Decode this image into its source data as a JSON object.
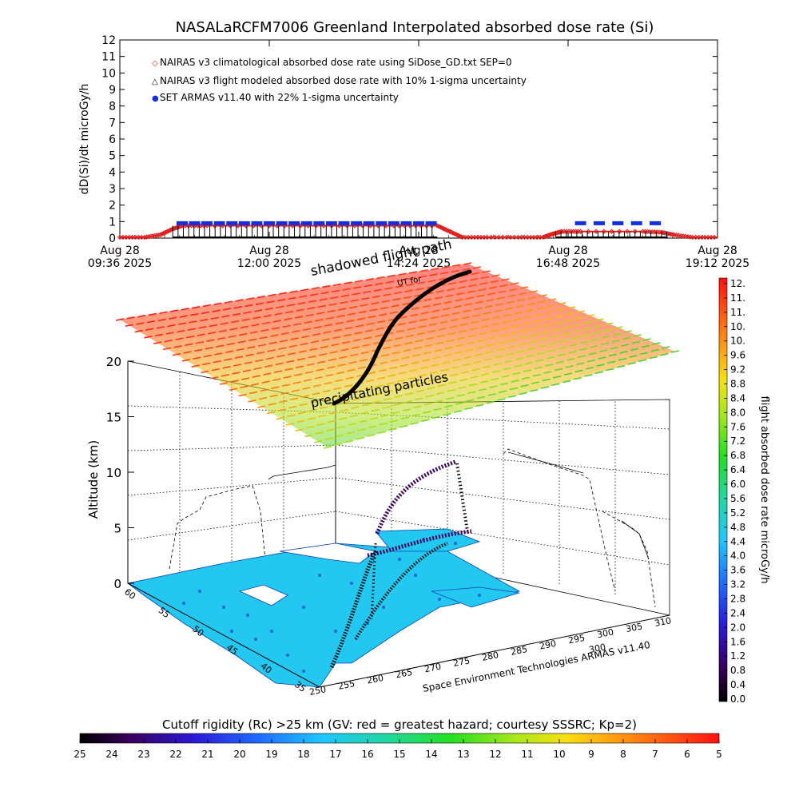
{
  "title": "NASALaRCFM7006  Greenland Interpolated absorbed dose rate (Si)",
  "chart_data": [
    {
      "type": "line",
      "title": "NASALaRCFM7006  Greenland Interpolated absorbed dose rate (Si)",
      "ylabel": "dD(Si)/dt microGy/h",
      "ylim": [
        0,
        12
      ],
      "y_ticks": [
        0,
        1,
        2,
        3,
        4,
        5,
        6,
        7,
        8,
        9,
        10,
        11,
        12
      ],
      "x_ticks": [
        {
          "date": "Aug 28",
          "time": "09:36 2025"
        },
        {
          "date": "Aug 28",
          "time": "12:00 2025"
        },
        {
          "date": "Aug 28",
          "time": "14:24 2025"
        },
        {
          "date": "Aug 28",
          "time": "16:48 2025"
        },
        {
          "date": "Aug 28",
          "time": "19:12 2025"
        }
      ],
      "xlim_hours": [
        9.6,
        19.2
      ],
      "legend": [
        {
          "marker": "◇",
          "color": "#e02020",
          "label": "NAIRAS v3 climatological absorbed dose rate using SiDose_GD.txt SEP=0"
        },
        {
          "marker": "△",
          "color": "#000000",
          "label": "NAIRAS v3 flight modeled absorbed dose rate with 10% 1-sigma uncertainty"
        },
        {
          "marker": "●",
          "color": "#1030e0",
          "label": "SET ARMAS v11.40 with 22% 1-sigma uncertainty"
        }
      ],
      "legend_position": "top-left",
      "series": [
        {
          "name": "NAIRAS v3 climatological absorbed dose rate using SiDose_GD.txt SEP=0",
          "color": "#e02020",
          "x": [
            9.6,
            10.0,
            10.25,
            10.45,
            10.6,
            11.0,
            12.0,
            13.0,
            14.0,
            14.7,
            14.9,
            15.1,
            15.5,
            16.0,
            16.4,
            16.55,
            16.7,
            17.0,
            18.0,
            18.3,
            18.5,
            18.8,
            19.2
          ],
          "y": [
            0.05,
            0.05,
            0.2,
            0.55,
            0.75,
            0.75,
            0.75,
            0.75,
            0.75,
            0.75,
            0.4,
            0.05,
            0.05,
            0.05,
            0.05,
            0.25,
            0.4,
            0.4,
            0.4,
            0.35,
            0.2,
            0.05,
            0.05
          ]
        },
        {
          "name": "NAIRAS v3 flight modeled absorbed dose rate with 10% 1-sigma uncertainty",
          "color": "#000000",
          "x": [
            10.45,
            10.8,
            11.2,
            11.6,
            12.0,
            12.4,
            12.8,
            13.2,
            13.6,
            14.0,
            14.4,
            14.7,
            16.6,
            16.9,
            17.2,
            17.5,
            17.8,
            18.1,
            18.4
          ],
          "y": [
            0.05,
            0.05,
            0.05,
            0.05,
            0.05,
            0.05,
            0.05,
            0.05,
            0.05,
            0.05,
            0.05,
            0.05,
            0.05,
            0.05,
            0.05,
            0.05,
            0.05,
            0.05,
            0.05
          ]
        },
        {
          "name": "SET ARMAS v11.40 with 22% 1-sigma uncertainty",
          "color": "#1030e0",
          "x": [
            10.6,
            10.8,
            11.0,
            11.2,
            11.4,
            11.6,
            11.8,
            12.0,
            12.2,
            12.4,
            12.6,
            12.8,
            13.0,
            13.2,
            13.4,
            13.6,
            13.8,
            14.0,
            14.2,
            14.4,
            14.6,
            17.0,
            17.3,
            17.6,
            17.9,
            18.2
          ],
          "y": [
            0.9,
            0.9,
            0.9,
            0.9,
            0.9,
            0.9,
            0.9,
            0.9,
            0.9,
            0.9,
            0.9,
            0.9,
            0.9,
            0.9,
            0.9,
            0.9,
            0.9,
            0.9,
            0.9,
            0.9,
            0.9,
            0.9,
            0.9,
            0.9,
            0.9,
            0.9
          ]
        }
      ]
    },
    {
      "type": "scatter",
      "zlabel": "Altitude (km)",
      "z_ticks": [
        0,
        5,
        10,
        15,
        20
      ],
      "lat_ticks": [
        60,
        55,
        50,
        45,
        40,
        35
      ],
      "lon_ticks_front": [
        250,
        255,
        260,
        265,
        270,
        275
      ],
      "lon_ticks_right": [
        280,
        285,
        290,
        295,
        300,
        305,
        310
      ],
      "lon_extra": "300",
      "annotations": [
        "shadowed flight path",
        "precipitating particles",
        "UT for"
      ],
      "credit": "Space Environment Technologies ARMAS v11.40",
      "colorbar_right": {
        "label": "flight absorbed dose rate microGy/h",
        "ticks": [
          "12.",
          "11.",
          "11.",
          "10.",
          "10.",
          "9.6",
          "9.2",
          "8.8",
          "8.4",
          "8.0",
          "7.6",
          "7.2",
          "6.8",
          "6.4",
          "6.0",
          "5.6",
          "5.2",
          "4.8",
          "4.4",
          "4.0",
          "3.6",
          "3.2",
          "2.8",
          "2.4",
          "2.0",
          "1.6",
          "1.2",
          "0.8",
          "0.4",
          "0.0"
        ]
      },
      "colorbar_bottom": {
        "label": "Cutoff rigidity (Rc) >25 km (GV: red = greatest hazard; courtesy SSSRC; Kp=2)",
        "ticks": [
          "25",
          "24",
          "23",
          "22",
          "21",
          "20",
          "19",
          "18",
          "17",
          "16",
          "15",
          "14",
          "13",
          "12",
          "11",
          "10",
          "9",
          "8",
          "7",
          "6",
          "5"
        ]
      }
    }
  ]
}
